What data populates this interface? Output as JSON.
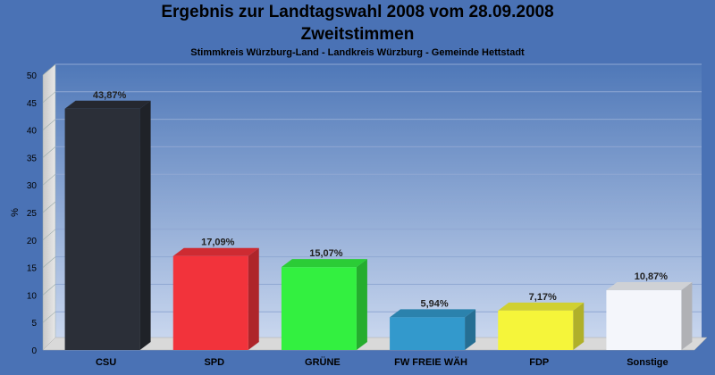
{
  "chart_data": {
    "type": "bar",
    "title": "Ergebnis zur Landtagswahl 2008 vom 28.09.2008",
    "title_line2": "Zweitstimmen",
    "subtitle": "Stimmkreis Würzburg-Land - Landkreis Würzburg - Gemeinde Hettstadt",
    "ylabel": "%",
    "ylim": [
      0,
      50
    ],
    "yticks": [
      0,
      5,
      10,
      15,
      20,
      25,
      30,
      35,
      40,
      45,
      50
    ],
    "categories": [
      "CSU",
      "SPD",
      "GRÜNE",
      "FW FREIE WÄH",
      "FDP",
      "Sonstige"
    ],
    "values": [
      43.87,
      17.09,
      15.07,
      5.94,
      7.17,
      10.87
    ],
    "value_labels": [
      "43,87%",
      "17,09%",
      "15,07%",
      "5,94%",
      "7,17%",
      "10,87%"
    ],
    "colors": [
      "#2b2f38",
      "#f2333b",
      "#33f040",
      "#3399cc",
      "#f5f53a",
      "#f4f6fb"
    ],
    "grid": true
  }
}
